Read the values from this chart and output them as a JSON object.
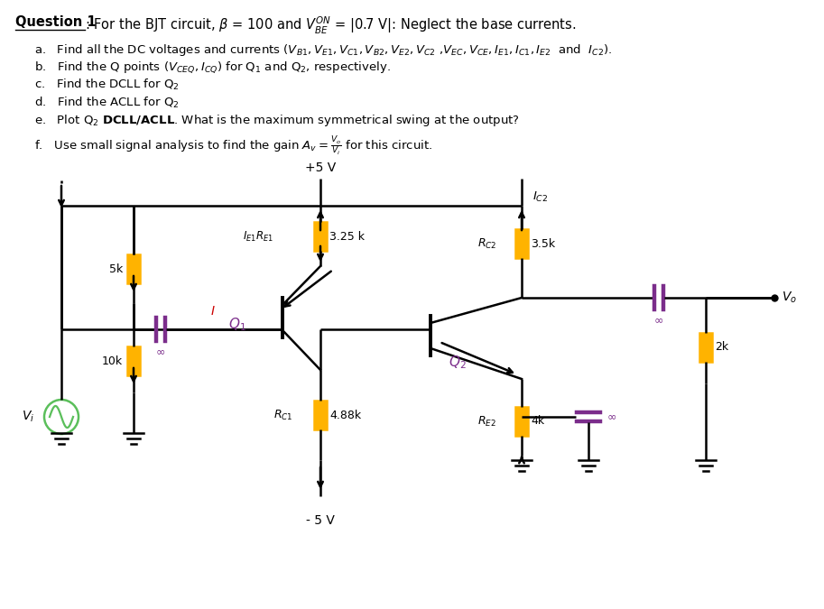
{
  "bg_color": "#FFFFFF",
  "wire_color": "#000000",
  "resistor_color": "#FFB300",
  "capacitor_color": "#7B2D8B",
  "transistor_color": "#000000",
  "source_color": "#5BBF5B",
  "title": "Question 1",
  "subtitle": ": For the BJT circuit, $\\beta$ = 100 and $V_{BE}^{ON}$ = |0.7 V|: Neglect the base currents.",
  "item_a": "a.   Find all the DC voltages and currents ($V_{B1}, V_{E1}, V_{C1}, V_{B2}, V_{E2}, V_{C2}$ ,$V_{EC}, V_{CE}, I_{E1}, I_{C1}, I_{E2}$  and  $I_{C2}$).",
  "item_b": "b.   Find the Q points ($V_{CEQ}, I_{CQ}$) for Q$_1$ and Q$_2$, respectively.",
  "item_c": "c.   Find the DCLL for Q$_2$",
  "item_d": "d.   Find the ACLL for Q$_2$",
  "item_e": "e.   Plot Q$_2$ $\\mathbf{DCLL/ACLL}$. What is the maximum symmetrical swing at the output?",
  "item_f": "f.   Use small signal analysis to find the gain $A_v = \\frac{V_o}{V_i}$ for this circuit.",
  "Vplus": "+5 V",
  "Vminus": "- 5 V",
  "R5k": "5k",
  "R10k": "10k",
  "RE1_label": "3.25 k",
  "RC1_label": "4.88k",
  "RC2_label": "3.5k",
  "RE2_label": "4k",
  "Rload_label": "2k",
  "IE1RE1": "$I_{E1}R_{E1}$",
  "RC2_name": "$R_{C2}$",
  "RC1_name": "$R_{C1}$",
  "RE2_name": "$R_{E2}$",
  "Ic2": "$I_{C2}$",
  "I_label": "$I$",
  "Q1_label": "$Q_1$",
  "Q2_label": "$Q_2$",
  "Vi_label": "$V_i$",
  "Vo_label": "$V_o$",
  "inf_label": "$\\infty$"
}
